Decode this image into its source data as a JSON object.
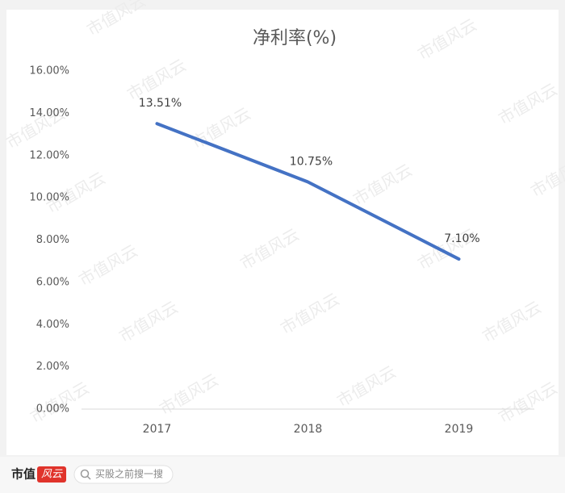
{
  "chart_data": {
    "type": "line",
    "title": "净利率(%)",
    "categories": [
      "2017",
      "2018",
      "2019"
    ],
    "values": [
      13.51,
      10.75,
      7.1
    ],
    "value_labels": [
      "13.51%",
      "10.75%",
      "7.10%"
    ],
    "color": "#4472c4",
    "ylim": [
      0,
      16
    ],
    "yticks": [
      {
        "value": 0,
        "label": "0.00%"
      },
      {
        "value": 2,
        "label": "2.00%"
      },
      {
        "value": 4,
        "label": "4.00%"
      },
      {
        "value": 6,
        "label": "6.00%"
      },
      {
        "value": 8,
        "label": "8.00%"
      },
      {
        "value": 10,
        "label": "10.00%"
      },
      {
        "value": 12,
        "label": "12.00%"
      },
      {
        "value": 14,
        "label": "14.00%"
      },
      {
        "value": 16,
        "label": "16.00%"
      }
    ],
    "grid": false
  },
  "watermark": "市值风云",
  "footer": {
    "brand": "市值",
    "logo": "风云",
    "search_placeholder": "买股之前搜一搜"
  }
}
